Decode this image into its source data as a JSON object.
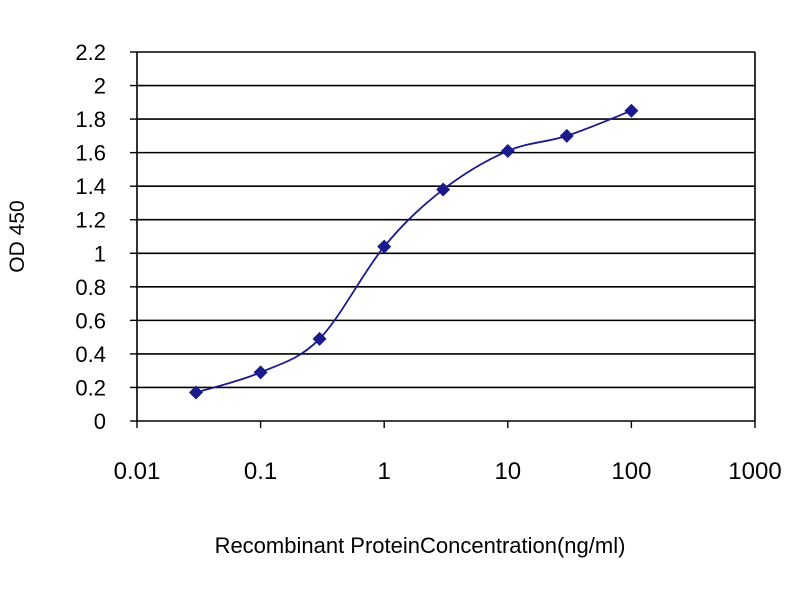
{
  "chart_data": {
    "type": "line",
    "title": "",
    "xlabel": "Recombinant  ProteinConcentration(ng/ml)",
    "ylabel": "OD 450",
    "x_scale": "log",
    "xlim": [
      0.01,
      1000
    ],
    "ylim": [
      0,
      2.2
    ],
    "x_ticks": [
      0.01,
      0.1,
      1,
      10,
      100,
      1000
    ],
    "x_tick_labels": [
      "0.01",
      "0.1",
      "1",
      "10",
      "100",
      "1000"
    ],
    "y_ticks": [
      0,
      0.2,
      0.4,
      0.6,
      0.8,
      1,
      1.2,
      1.4,
      1.6,
      1.8,
      2,
      2.2
    ],
    "y_tick_labels": [
      "0",
      "0.2",
      "0.4",
      "0.6",
      "0.8",
      "1",
      "1.2",
      "1.4",
      "1.6",
      "1.8",
      "2",
      "2.2"
    ],
    "grid": true,
    "legend": "none",
    "series": [
      {
        "x": [
          0.03,
          0.1,
          0.3,
          1,
          3,
          10,
          30,
          100
        ],
        "y": [
          0.17,
          0.29,
          0.49,
          1.04,
          1.38,
          1.61,
          1.7,
          1.85
        ],
        "color": "#1a1a8c",
        "marker": "diamond"
      }
    ],
    "colors": {
      "plot_background": "#ffffff",
      "gridline": "#000000",
      "line": "#1a1a8c",
      "marker": "#1a1a8c"
    }
  }
}
